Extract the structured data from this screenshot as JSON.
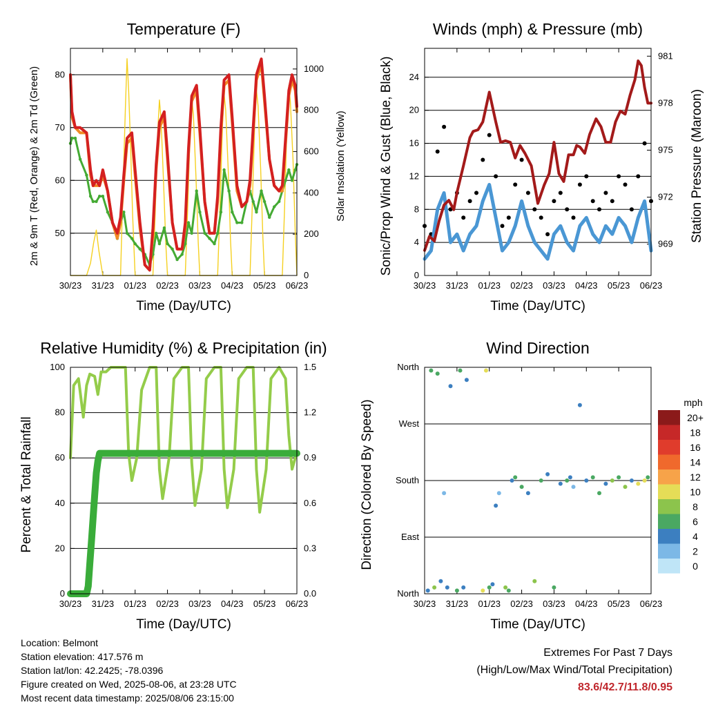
{
  "x_ticks": [
    "30/23",
    "31/23",
    "01/23",
    "02/23",
    "03/23",
    "04/23",
    "05/23",
    "06/23"
  ],
  "x_label": "Time (Day/UTC)",
  "chart_data": [
    {
      "type": "line",
      "title": "Temperature (F)",
      "xlabel": "Time (Day/UTC)",
      "ylabel": "2m & 9m T (Red, Orange) & 2m Td (Green)",
      "ylabel_right": "Solar Insolation (Yellow)",
      "ylim": [
        42,
        85
      ],
      "y_ticks": [
        50,
        60,
        70,
        80
      ],
      "ylim_right": [
        0,
        1100
      ],
      "y_ticks_right": [
        0,
        200,
        400,
        600,
        800,
        1000
      ],
      "x": [
        0,
        0.05,
        0.15,
        0.3,
        0.5,
        0.62,
        0.7,
        0.8,
        0.9,
        1.0,
        1.15,
        1.3,
        1.45,
        1.55,
        1.65,
        1.75,
        1.9,
        2.0,
        2.15,
        2.3,
        2.45,
        2.55,
        2.65,
        2.75,
        2.9,
        3.0,
        3.15,
        3.3,
        3.45,
        3.55,
        3.65,
        3.75,
        3.9,
        4.0,
        4.15,
        4.3,
        4.45,
        4.55,
        4.65,
        4.75,
        4.9,
        5.0,
        5.15,
        5.3,
        5.45,
        5.55,
        5.65,
        5.75,
        5.9,
        6.0,
        6.15,
        6.3,
        6.45,
        6.55,
        6.65,
        6.75,
        6.85,
        6.95,
        7.0
      ],
      "series": [
        {
          "name": "2m T",
          "color": "#d42020",
          "values": [
            80,
            73,
            70,
            70,
            69,
            62,
            59,
            60,
            59,
            62,
            58,
            52,
            50,
            53,
            61,
            68,
            69,
            62,
            52,
            44,
            43,
            51,
            63,
            71,
            73,
            65,
            52,
            47,
            47,
            52,
            66,
            76,
            78,
            70,
            56,
            50,
            50,
            57,
            70,
            79,
            80,
            72,
            59,
            55,
            56,
            60,
            70,
            80,
            83,
            76,
            64,
            59,
            58,
            59,
            68,
            77,
            80,
            78,
            74
          ]
        },
        {
          "name": "9m T",
          "color": "#f08a24",
          "values": [
            80,
            72,
            70,
            69,
            69,
            61,
            59,
            59,
            59,
            61,
            58,
            52,
            49,
            52,
            60,
            67,
            68,
            61,
            51,
            44,
            43,
            50,
            62,
            70,
            72,
            64,
            52,
            47,
            47,
            51,
            65,
            75,
            77,
            69,
            56,
            50,
            50,
            56,
            69,
            78,
            79,
            71,
            58,
            55,
            56,
            59,
            69,
            79,
            82,
            75,
            64,
            59,
            58,
            58,
            67,
            76,
            79,
            77,
            73
          ]
        },
        {
          "name": "2m Td",
          "color": "#44aa33",
          "values": [
            67,
            68,
            68,
            64,
            61,
            57,
            56,
            56,
            57,
            57,
            54,
            52,
            49,
            52,
            54,
            50,
            49,
            48,
            47,
            46,
            44,
            46,
            50,
            48,
            51,
            48,
            47,
            45,
            46,
            48,
            52,
            50,
            58,
            54,
            50,
            49,
            48,
            50,
            54,
            62,
            58,
            54,
            52,
            52,
            56,
            58,
            56,
            54,
            58,
            56,
            53,
            55,
            56,
            58,
            60,
            62,
            60,
            62,
            63
          ]
        }
      ],
      "solar": {
        "name": "Solar Insolation",
        "color": "#f5d020",
        "x": [
          0,
          0.5,
          0.62,
          0.72,
          0.8,
          0.88,
          1.0,
          1.55,
          1.62,
          1.7,
          1.75,
          1.8,
          1.86,
          1.92,
          2.0,
          2.55,
          2.62,
          2.7,
          2.75,
          2.8,
          2.88,
          2.95,
          3.0,
          3.55,
          3.62,
          3.7,
          3.75,
          3.8,
          3.88,
          3.95,
          4.0,
          4.55,
          4.62,
          4.7,
          4.75,
          4.8,
          4.88,
          4.95,
          5.0,
          5.55,
          5.62,
          5.7,
          5.75,
          5.8,
          5.88,
          5.95,
          6.0,
          6.55,
          6.62,
          6.7,
          6.75,
          6.8,
          6.88,
          6.95,
          7.0
        ],
        "values": [
          0,
          0,
          60,
          160,
          220,
          120,
          0,
          0,
          400,
          820,
          1050,
          900,
          620,
          300,
          0,
          0,
          300,
          700,
          850,
          760,
          450,
          150,
          0,
          0,
          300,
          700,
          860,
          780,
          480,
          160,
          0,
          0,
          320,
          720,
          880,
          800,
          500,
          170,
          0,
          0,
          330,
          750,
          900,
          820,
          520,
          180,
          0,
          0,
          330,
          760,
          920,
          840,
          560,
          200,
          0
        ]
      }
    },
    {
      "type": "line",
      "title": "Winds (mph) & Pressure (mb)",
      "xlabel": "Time (Day/UTC)",
      "ylabel": "Sonic/Prop Wind & Gust (Blue, Black)",
      "ylabel_right": "Station Pressure (Maroon)",
      "ylim": [
        0,
        27.5
      ],
      "y_ticks": [
        0,
        4,
        8,
        12,
        16,
        20,
        24
      ],
      "ylim_right": [
        967,
        981.5
      ],
      "y_ticks_right": [
        969,
        972,
        975,
        978,
        981
      ],
      "series": [
        {
          "name": "Station Pressure",
          "color": "#a31a1a",
          "x": [
            0,
            0.15,
            0.3,
            0.45,
            0.6,
            0.75,
            0.9,
            1.0,
            1.2,
            1.4,
            1.5,
            1.65,
            1.8,
            2.0,
            2.2,
            2.35,
            2.5,
            2.65,
            2.8,
            2.95,
            3.1,
            3.3,
            3.5,
            3.7,
            3.85,
            4.0,
            4.15,
            4.3,
            4.45,
            4.6,
            4.7,
            4.8,
            4.95,
            5.1,
            5.3,
            5.45,
            5.6,
            5.75,
            5.9,
            6.05,
            6.2,
            6.35,
            6.5,
            6.6,
            6.7,
            6.8,
            6.9,
            7.0
          ],
          "values": [
            968.6,
            969.5,
            969.2,
            970.5,
            971.5,
            971.8,
            971.2,
            972.3,
            974.0,
            975.8,
            976.2,
            976.3,
            976.8,
            978.7,
            976.8,
            975.5,
            975.6,
            975.5,
            974.5,
            975.3,
            974.8,
            974.0,
            971.6,
            972.8,
            973.5,
            975.5,
            973.5,
            973.0,
            974.7,
            974.7,
            975.3,
            975.2,
            974.8,
            976.0,
            977.0,
            976.5,
            975.5,
            975.5,
            976.8,
            977.5,
            977.3,
            978.5,
            979.5,
            980.7,
            980.4,
            979.0,
            978.0,
            978.0
          ]
        },
        {
          "name": "Wind Gust",
          "color": "#000000",
          "x": [
            0,
            0.2,
            0.4,
            0.6,
            0.8,
            1.0,
            1.2,
            1.4,
            1.6,
            1.8,
            2.0,
            2.2,
            2.4,
            2.6,
            2.8,
            3.0,
            3.2,
            3.4,
            3.6,
            3.8,
            4.0,
            4.2,
            4.4,
            4.6,
            4.8,
            5.0,
            5.2,
            5.4,
            5.6,
            5.8,
            6.0,
            6.2,
            6.4,
            6.6,
            6.8,
            7.0
          ],
          "values": [
            6,
            5,
            15,
            18,
            8,
            10,
            7,
            9,
            10,
            14,
            17,
            12,
            6,
            7,
            11,
            14,
            10,
            8,
            7,
            5,
            9,
            10,
            8,
            7,
            11,
            12,
            9,
            8,
            10,
            9,
            12,
            11,
            8,
            12,
            16,
            9
          ]
        },
        {
          "name": "Wind Speed",
          "color": "#4a97d4",
          "x": [
            0,
            0.2,
            0.4,
            0.6,
            0.8,
            1.0,
            1.2,
            1.4,
            1.6,
            1.8,
            2.0,
            2.2,
            2.4,
            2.6,
            2.8,
            3.0,
            3.2,
            3.4,
            3.6,
            3.8,
            4.0,
            4.2,
            4.4,
            4.6,
            4.8,
            5.0,
            5.2,
            5.4,
            5.6,
            5.8,
            6.0,
            6.2,
            6.4,
            6.6,
            6.8,
            7.0
          ],
          "values": [
            2,
            3,
            8,
            10,
            4,
            5,
            3,
            5,
            6,
            9,
            11,
            7,
            3,
            4,
            6,
            9,
            6,
            4,
            3,
            2,
            5,
            6,
            4,
            3,
            6,
            7,
            5,
            4,
            6,
            5,
            7,
            6,
            4,
            7,
            9,
            3
          ]
        }
      ]
    },
    {
      "type": "line",
      "title": "Relative Humidity (%) & Precipitation (in)",
      "xlabel": "Time (Day/UTC)",
      "ylabel": "Percent & Total Rainfall",
      "ylim": [
        0,
        100
      ],
      "y_ticks": [
        0,
        20,
        40,
        60,
        80,
        100
      ],
      "ylim_right": [
        0,
        1.5
      ],
      "y_ticks_right": [
        "0.0",
        "0.3",
        "0.6",
        "0.9",
        "1.2",
        "1.5"
      ],
      "series": [
        {
          "name": "Relative Humidity",
          "color": "#94cc4a",
          "x": [
            0,
            0.1,
            0.25,
            0.4,
            0.5,
            0.6,
            0.75,
            0.85,
            0.95,
            1.1,
            1.25,
            1.5,
            1.7,
            1.8,
            1.9,
            2.05,
            2.2,
            2.45,
            2.65,
            2.75,
            2.85,
            3.05,
            3.2,
            3.45,
            3.65,
            3.75,
            3.85,
            4.05,
            4.2,
            4.45,
            4.65,
            4.75,
            4.85,
            5.05,
            5.2,
            5.45,
            5.65,
            5.75,
            5.85,
            6.05,
            6.2,
            6.45,
            6.65,
            6.75,
            6.85,
            6.95,
            7.0
          ],
          "values": [
            60,
            92,
            95,
            78,
            92,
            97,
            96,
            88,
            98,
            98,
            100,
            100,
            100,
            62,
            50,
            60,
            90,
            100,
            100,
            55,
            42,
            60,
            95,
            100,
            100,
            58,
            39,
            55,
            95,
            100,
            100,
            55,
            38,
            55,
            95,
            100,
            100,
            55,
            36,
            55,
            95,
            100,
            95,
            70,
            55,
            60,
            62
          ]
        },
        {
          "name": "Total Precipitation",
          "color": "#3aac3a",
          "x": [
            0,
            0.5,
            0.55,
            0.6,
            0.65,
            0.7,
            0.75,
            0.8,
            0.85,
            0.9,
            7.0
          ],
          "values": [
            0,
            0,
            0.05,
            0.2,
            0.35,
            0.5,
            0.65,
            0.8,
            0.88,
            0.93,
            0.93
          ]
        }
      ]
    },
    {
      "type": "scatter",
      "title": "Wind Direction",
      "xlabel": "Time (Day/UTC)",
      "ylabel": "Direction (Colored By Speed)",
      "y_ticks": [
        "North",
        "West",
        "South",
        "East",
        "North"
      ],
      "legend_title": "mph",
      "legend_labels": [
        "20+",
        "18",
        "16",
        "14",
        "12",
        "10",
        "8",
        "6",
        "4",
        "2",
        "0"
      ],
      "legend_colors": [
        "#8b1a1a",
        "#c62828",
        "#e03c2c",
        "#f0692c",
        "#f7a349",
        "#e5dd57",
        "#8cc44c",
        "#4aa862",
        "#3c7fc0",
        "#7cb8e6",
        "#bfe5f7"
      ],
      "x": [
        0.1,
        0.2,
        0.3,
        0.4,
        0.5,
        0.6,
        0.7,
        0.8,
        1.0,
        1.1,
        1.2,
        1.3,
        1.8,
        1.9,
        2.0,
        2.1,
        2.2,
        2.3,
        2.5,
        2.6,
        2.7,
        2.8,
        3.0,
        3.2,
        3.4,
        3.6,
        3.8,
        4.0,
        4.2,
        4.4,
        4.5,
        4.6,
        4.8,
        5.0,
        5.2,
        5.4,
        5.6,
        5.8,
        6.0,
        6.2,
        6.4,
        6.6,
        6.8,
        6.9
      ],
      "y": [
        355,
        5,
        350,
        10,
        340,
        200,
        350,
        30,
        355,
        5,
        350,
        20,
        355,
        5,
        350,
        345,
        220,
        200,
        350,
        355,
        180,
        175,
        190,
        200,
        340,
        180,
        170,
        350,
        185,
        180,
        175,
        190,
        60,
        180,
        175,
        200,
        185,
        180,
        175,
        190,
        180,
        185,
        180,
        175
      ],
      "speed": [
        4,
        6,
        8,
        5,
        3,
        2,
        4,
        3,
        6,
        5,
        4,
        3,
        10,
        9,
        6,
        4,
        3,
        2,
        8,
        6,
        4,
        5,
        6,
        4,
        7,
        5,
        3,
        6,
        4,
        5,
        3,
        2,
        3,
        4,
        6,
        5,
        3,
        8,
        5,
        7,
        4,
        9,
        10,
        6
      ]
    }
  ],
  "footer": {
    "location": "Location: Belmont",
    "elevation": "Station elevation: 417.576 m",
    "latlon": "Station lat/lon: 42.2425; -78.0396",
    "created": "Figure created on Wed, 2025-08-06, at 23:28 UTC",
    "recent": "Most recent data timestamp: 2025/08/06 23:15:00"
  },
  "extremes": {
    "title": "Extremes For Past 7 Days",
    "subtitle": "(High/Low/Max Wind/Total Precipitation)",
    "values": "83.6/42.7/11.8/0.95"
  }
}
